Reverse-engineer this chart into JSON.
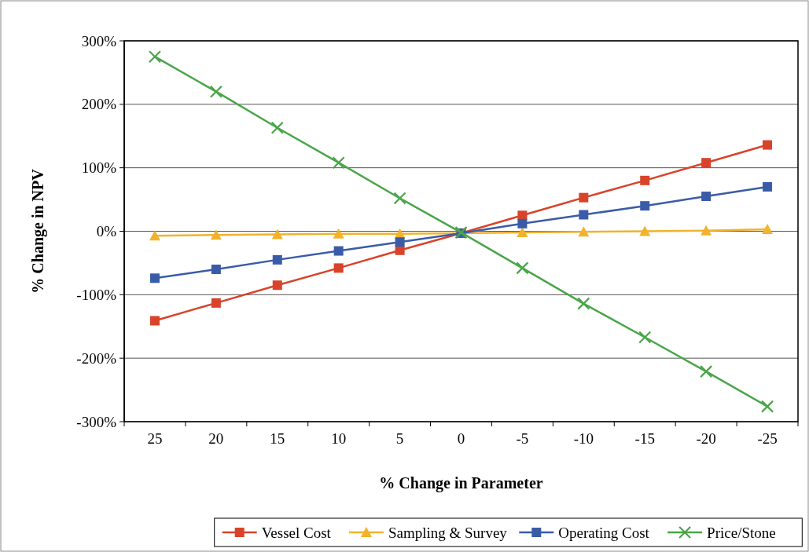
{
  "chart_data": {
    "type": "line",
    "xlabel": "% Change in Parameter",
    "ylabel": "% Change in NPV",
    "categories": [
      "25",
      "20",
      "15",
      "10",
      "5",
      "0",
      "-5",
      "-10",
      "-15",
      "-20",
      "-25"
    ],
    "ylim": [
      -300,
      300
    ],
    "yticks": [
      {
        "value": -300,
        "label": "-300%"
      },
      {
        "value": -200,
        "label": "-200%"
      },
      {
        "value": -100,
        "label": "-100%"
      },
      {
        "value": 0,
        "label": "0%"
      },
      {
        "value": 100,
        "label": "100%"
      },
      {
        "value": 200,
        "label": "200%"
      },
      {
        "value": 300,
        "label": "300%"
      }
    ],
    "grid": "y",
    "legend": "bottom",
    "line_style": "solid",
    "series": [
      {
        "name": "Vessel Cost",
        "color": "#d9432a",
        "marker": "square",
        "values": [
          -141,
          -113,
          -85,
          -58,
          -30,
          -3,
          25,
          53,
          80,
          108,
          136
        ]
      },
      {
        "name": "Sampling & Survey",
        "color": "#f2b22c",
        "marker": "triangle",
        "values": [
          -7,
          -6,
          -5,
          -4,
          -4,
          -3,
          -2,
          -1,
          0,
          1,
          3
        ]
      },
      {
        "name": "Operating Cost",
        "color": "#3a5ca8",
        "marker": "square",
        "values": [
          -74,
          -60,
          -45,
          -31,
          -17,
          -3,
          12,
          26,
          40,
          55,
          70
        ]
      },
      {
        "name": "Price/Stone",
        "color": "#4aa548",
        "marker": "cross",
        "values": [
          275,
          220,
          163,
          108,
          52,
          -2,
          -58,
          -114,
          -167,
          -221,
          -276
        ]
      }
    ]
  }
}
